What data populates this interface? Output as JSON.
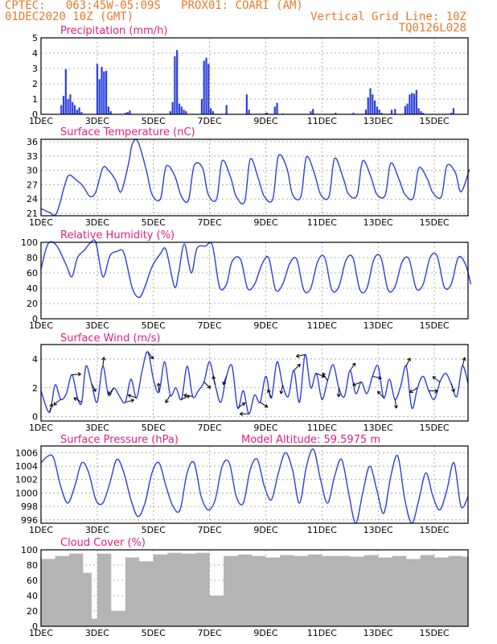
{
  "header": {
    "line1_left": "CPTEC:   063:45W-05:09S   PROX01: COARI (AM)",
    "line2_left": "01DEC2020 10Z (GMT)",
    "line2_right": "Vertical Grid Line: 10Z",
    "line3_right": "TQ0126L028"
  },
  "colors": {
    "header": "#e8782a",
    "title": "#e0207a",
    "series": "#2b3fe0",
    "cloud": "#b4b4b4"
  },
  "chart_data": [
    {
      "type": "bar",
      "title": "Precipitation (mm/h)",
      "ylim": [
        0,
        5
      ],
      "yticks": [
        0,
        1,
        2,
        3,
        4,
        5
      ],
      "xticks": [
        "1DEC",
        "3DEC",
        "5DEC",
        "7DEC",
        "9DEC",
        "11DEC",
        "13DEC",
        "15DEC"
      ],
      "x_unit": "days since 01DEC2020 10Z",
      "x": [
        0.72,
        0.8,
        0.88,
        0.96,
        1.04,
        1.12,
        1.2,
        1.28,
        1.36,
        1.44,
        2.0,
        2.08,
        2.16,
        2.24,
        2.32,
        2.4,
        2.48,
        3.0,
        3.08,
        3.16,
        4.6,
        4.68,
        4.76,
        4.84,
        4.92,
        5.0,
        5.08,
        5.16,
        5.72,
        5.8,
        5.88,
        5.96,
        6.04,
        6.12,
        6.6,
        7.32,
        7.4,
        8.0,
        8.04,
        8.32,
        8.4,
        8.6,
        9.6,
        9.68,
        10.48,
        11.12,
        11.56,
        11.64,
        11.72,
        11.8,
        11.88,
        11.96,
        12.04,
        12.12,
        12.48,
        12.6,
        12.96,
        13.04,
        13.12,
        13.2,
        13.28,
        13.36,
        13.44,
        13.52,
        13.6,
        14.6,
        14.68
      ],
      "values": [
        0.6,
        1.2,
        2.95,
        1.0,
        1.3,
        0.8,
        0.6,
        0.3,
        0.45,
        0.15,
        3.3,
        2.3,
        3.1,
        2.8,
        2.85,
        0.5,
        0.2,
        0.1,
        0.15,
        0.25,
        0.2,
        0.8,
        3.8,
        4.2,
        0.7,
        0.5,
        0.3,
        0.2,
        1.0,
        3.5,
        3.7,
        3.3,
        0.4,
        0.2,
        0.6,
        1.3,
        0.3,
        0.1,
        0.1,
        0.5,
        0.75,
        0.05,
        0.2,
        0.35,
        0.1,
        0.1,
        0.3,
        1.1,
        1.7,
        1.3,
        0.9,
        0.5,
        0.3,
        0.1,
        0.3,
        0.35,
        0.55,
        0.7,
        1.3,
        1.4,
        1.35,
        1.6,
        0.4,
        0.2,
        0.1,
        0.1,
        0.4
      ]
    },
    {
      "type": "line",
      "title": "Surface Temperature (nC)",
      "ylim": [
        20.5,
        36.5
      ],
      "yticks": [
        21,
        24,
        27,
        30,
        33,
        36
      ],
      "xticks": [
        "1DEC",
        "3DEC",
        "5DEC",
        "7DEC",
        "9DEC",
        "11DEC",
        "13DEC",
        "15DEC"
      ],
      "x_unit": "days since 01DEC2020 10Z",
      "x": [
        0,
        0.3,
        0.55,
        0.85,
        1.0,
        1.25,
        1.45,
        1.55,
        1.75,
        1.95,
        2.2,
        2.4,
        2.65,
        2.85,
        3.1,
        3.25,
        3.45,
        3.75,
        3.95,
        4.25,
        4.45,
        4.75,
        5.0,
        5.25,
        5.45,
        5.75,
        5.95,
        6.25,
        6.45,
        6.75,
        6.95,
        7.25,
        7.45,
        7.75,
        7.95,
        8.25,
        8.45,
        8.75,
        8.95,
        9.25,
        9.45,
        9.75,
        9.95,
        10.25,
        10.45,
        10.75,
        10.95,
        11.25,
        11.45,
        11.75,
        11.95,
        12.25,
        12.45,
        12.75,
        12.95,
        13.25,
        13.45,
        13.75,
        13.95,
        14.25,
        14.45,
        14.75,
        14.95,
        15.25
      ],
      "values": [
        22,
        21.2,
        21,
        27,
        29,
        28,
        27,
        26.2,
        24.5,
        25.5,
        30.5,
        30,
        28,
        25.5,
        31,
        35.5,
        36,
        30,
        25,
        24,
        30.8,
        29,
        24.5,
        23.8,
        31,
        30.5,
        25,
        24,
        32,
        28.5,
        24.5,
        23.5,
        32.4,
        28,
        24.5,
        24,
        33,
        30.5,
        25,
        24.5,
        32.8,
        29,
        25,
        24.5,
        32.5,
        28.5,
        25,
        24.8,
        32,
        28.5,
        25,
        24.8,
        31.5,
        28,
        25,
        24.2,
        30.5,
        28.2,
        25.3,
        24.5,
        31,
        29.5,
        25.5,
        30.2
      ]
    },
    {
      "type": "line",
      "title": "Relative Humidity (%)",
      "ylim": [
        0,
        100
      ],
      "yticks": [
        0,
        20,
        40,
        60,
        80,
        100
      ],
      "xticks": [
        "1DEC",
        "3DEC",
        "5DEC",
        "7DEC",
        "9DEC",
        "11DEC",
        "13DEC",
        "15DEC"
      ],
      "x_unit": "days since 01DEC2020 10Z",
      "x": [
        0,
        0.25,
        0.55,
        0.9,
        1.1,
        1.3,
        1.55,
        1.75,
        1.95,
        2.2,
        2.45,
        2.7,
        2.95,
        3.25,
        3.5,
        3.7,
        3.95,
        4.25,
        4.45,
        4.75,
        4.9,
        5.1,
        5.35,
        5.55,
        5.85,
        6.1,
        6.35,
        6.6,
        6.8,
        7.1,
        7.35,
        7.6,
        7.85,
        8.1,
        8.35,
        8.6,
        8.85,
        9.1,
        9.35,
        9.6,
        9.85,
        10.1,
        10.35,
        10.6,
        10.85,
        11.1,
        11.35,
        11.6,
        11.85,
        12.1,
        12.35,
        12.6,
        12.85,
        13.1,
        13.35,
        13.6,
        13.85,
        14.1,
        14.35,
        14.6,
        14.85,
        15.1,
        15.3
      ],
      "values": [
        65,
        98,
        96,
        70,
        55,
        80,
        90,
        99,
        100,
        55,
        82,
        88,
        86,
        40,
        28,
        42,
        68,
        85,
        90,
        42,
        60,
        98,
        60,
        92,
        95,
        96,
        42,
        45,
        75,
        78,
        40,
        45,
        70,
        80,
        38,
        45,
        72,
        78,
        38,
        40,
        75,
        80,
        38,
        42,
        76,
        80,
        38,
        40,
        78,
        80,
        38,
        42,
        74,
        78,
        40,
        45,
        80,
        82,
        42,
        45,
        80,
        72,
        45
      ]
    },
    {
      "type": "line",
      "title": "Surface Wind (m/s)",
      "ylim": [
        -0.3,
        5.0
      ],
      "yticks": [
        0,
        2,
        4
      ],
      "xticks": [
        "1DEC",
        "3DEC",
        "5DEC",
        "7DEC",
        "9DEC",
        "11DEC",
        "13DEC",
        "15DEC"
      ],
      "x_unit": "days since 01DEC2020 10Z",
      "x": [
        0,
        0.3,
        0.5,
        0.7,
        0.9,
        1.1,
        1.3,
        1.45,
        1.6,
        1.8,
        2.0,
        2.2,
        2.4,
        2.6,
        2.8,
        3.0,
        3.2,
        3.4,
        3.6,
        3.8,
        4.0,
        4.2,
        4.4,
        4.6,
        4.8,
        5.0,
        5.2,
        5.4,
        5.6,
        5.8,
        6.0,
        6.2,
        6.4,
        6.6,
        6.8,
        7.0,
        7.2,
        7.4,
        7.6,
        7.8,
        8.0,
        8.2,
        8.4,
        8.6,
        8.8,
        9.0,
        9.2,
        9.4,
        9.6,
        9.8,
        10.0,
        10.2,
        10.4,
        10.6,
        10.8,
        11.0,
        11.2,
        11.4,
        11.6,
        11.8,
        12.0,
        12.2,
        12.4,
        12.6,
        12.8,
        13.0,
        13.2,
        13.4,
        13.6,
        13.8,
        14.0,
        14.2,
        14.4,
        14.6,
        14.8,
        15.0,
        15.2
      ],
      "values": [
        1.8,
        0.3,
        2.2,
        1.2,
        1.6,
        2.9,
        1.3,
        1.0,
        3.5,
        2.3,
        1.0,
        3.5,
        1.5,
        2.0,
        1.4,
        1.0,
        2.6,
        1.3,
        3.2,
        4.5,
        2.6,
        1.7,
        3.8,
        1.5,
        2.0,
        1.2,
        3.5,
        1.4,
        1.8,
        2.4,
        3.8,
        2.2,
        1.0,
        2.8,
        3.5,
        0.6,
        1.8,
        0.2,
        1.5,
        1.0,
        2.8,
        1.3,
        3.8,
        2.2,
        1.4,
        3.2,
        1.0,
        4.3,
        2.0,
        3.0,
        1.2,
        2.5,
        3.6,
        2.0,
        1.4,
        3.2,
        1.6,
        2.4,
        1.6,
        2.8,
        3.5,
        1.3,
        2.6,
        1.2,
        2.1,
        3.5,
        0.6,
        2.0,
        2.8,
        1.8,
        1.2,
        2.4,
        3.0,
        2.3,
        1.4,
        3.5,
        2.3
      ]
    },
    {
      "type": "line",
      "title": "Surface Pressure (hPa)",
      "annotation": "Model Altitude: 59.5975  m",
      "ylim": [
        995.5,
        1007
      ],
      "yticks": [
        996,
        998,
        1000,
        1002,
        1004,
        1006
      ],
      "xticks": [
        "1DEC",
        "3DEC",
        "5DEC",
        "7DEC",
        "9DEC",
        "11DEC",
        "13DEC",
        "15DEC"
      ],
      "x_unit": "days since 01DEC2020 10Z",
      "x": [
        0,
        0.25,
        0.45,
        0.7,
        0.95,
        1.2,
        1.45,
        1.7,
        1.95,
        2.2,
        2.45,
        2.7,
        2.95,
        3.2,
        3.45,
        3.7,
        3.95,
        4.2,
        4.45,
        4.7,
        4.95,
        5.2,
        5.45,
        5.7,
        5.95,
        6.2,
        6.45,
        6.7,
        6.95,
        7.2,
        7.45,
        7.7,
        7.95,
        8.2,
        8.45,
        8.7,
        8.95,
        9.2,
        9.45,
        9.7,
        9.95,
        10.2,
        10.45,
        10.7,
        10.95,
        11.2,
        11.45,
        11.7,
        11.95,
        12.2,
        12.45,
        12.7,
        12.95,
        13.2,
        13.45,
        13.7,
        13.95,
        14.2,
        14.45,
        14.7,
        14.95,
        15.2
      ],
      "values": [
        1004.5,
        1005.5,
        1005.2,
        1001,
        998.5,
        1001,
        1004.5,
        1003,
        999,
        998.5,
        1001.5,
        1005,
        1003,
        999,
        996.5,
        998.5,
        1003,
        1004.5,
        1001,
        998,
        997.5,
        1003,
        1004.5,
        999.5,
        997.5,
        999,
        1004,
        1004.5,
        999.5,
        998.5,
        1003.5,
        1005,
        1001,
        999,
        1003,
        1006,
        1003.5,
        998.5,
        1004,
        1006.5,
        1002,
        998.5,
        1002.5,
        1005,
        1000,
        995.5,
        1000,
        1004,
        1000.5,
        997,
        1002.5,
        1005.5,
        999,
        995.5,
        999,
        1003,
        999.5,
        997.5,
        1000.5,
        1004.5,
        998,
        999.5
      ]
    },
    {
      "type": "bar",
      "title": "Cloud Cover (%)",
      "ylim": [
        0,
        100
      ],
      "yticks": [
        0,
        20,
        40,
        60,
        80,
        100
      ],
      "xticks": [
        "1DEC",
        "3DEC",
        "5DEC",
        "7DEC",
        "9DEC",
        "11DEC",
        "13DEC",
        "15DEC"
      ],
      "x_unit": "days since 01DEC2020 10Z",
      "x": [
        0,
        0.5,
        1.0,
        1.5,
        1.8,
        2.0,
        2.5,
        3.0,
        3.5,
        4.0,
        4.5,
        5.0,
        5.5,
        6.0,
        6.5,
        7.0,
        7.5,
        8.0,
        8.5,
        9.0,
        9.5,
        10.0,
        10.5,
        11.0,
        11.5,
        12.0,
        12.5,
        13.0,
        13.5,
        14.0,
        14.5,
        15.0
      ],
      "values": [
        88,
        92,
        95,
        70,
        10,
        95,
        20,
        90,
        85,
        94,
        96,
        95,
        96,
        40,
        92,
        94,
        92,
        90,
        93,
        92,
        94,
        92,
        92,
        91,
        93,
        90,
        92,
        88,
        93,
        90,
        92,
        91
      ]
    }
  ]
}
